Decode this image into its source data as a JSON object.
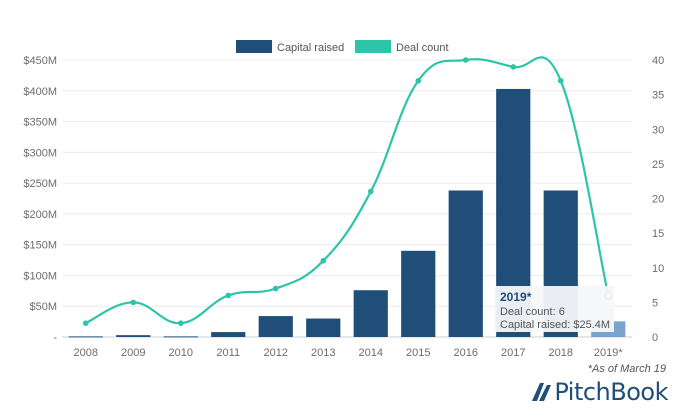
{
  "chart_data": {
    "type": "bar",
    "categories": [
      "2008",
      "2009",
      "2010",
      "2011",
      "2012",
      "2013",
      "2014",
      "2015",
      "2016",
      "2017",
      "2018",
      "2019*"
    ],
    "series": [
      {
        "name": "Capital raised",
        "type": "bar",
        "axis": "left",
        "color": "#1f4e79",
        "values": [
          1,
          3,
          1,
          8,
          34,
          30,
          76,
          140,
          238,
          403,
          238,
          25.4
        ]
      },
      {
        "name": "Deal count",
        "type": "line",
        "axis": "right",
        "color": "#2ec4a9",
        "values": [
          2,
          5,
          2,
          6,
          7,
          11,
          21,
          37,
          40,
          39,
          37,
          6
        ]
      }
    ],
    "left_axis": {
      "ylim": [
        0,
        450
      ],
      "ticks": [
        "-",
        "$50M",
        "$100M",
        "$150M",
        "$200M",
        "$250M",
        "$300M",
        "$350M",
        "$400M",
        "$450M"
      ]
    },
    "right_axis": {
      "ylim": [
        0,
        40
      ],
      "ticks": [
        "0",
        "5",
        "10",
        "15",
        "20",
        "25",
        "30",
        "35",
        "40"
      ]
    },
    "legend": {
      "position": "top",
      "entries": [
        "Capital raised",
        "Deal count"
      ]
    },
    "grid": true,
    "highlight_bar_color": "#7aa3cc",
    "tooltip": {
      "title": "2019*",
      "line1": "Deal count: 6",
      "line2": "Capital raised: $25.4M"
    }
  },
  "footnote": "*As of March 19",
  "brand": "PitchBook"
}
